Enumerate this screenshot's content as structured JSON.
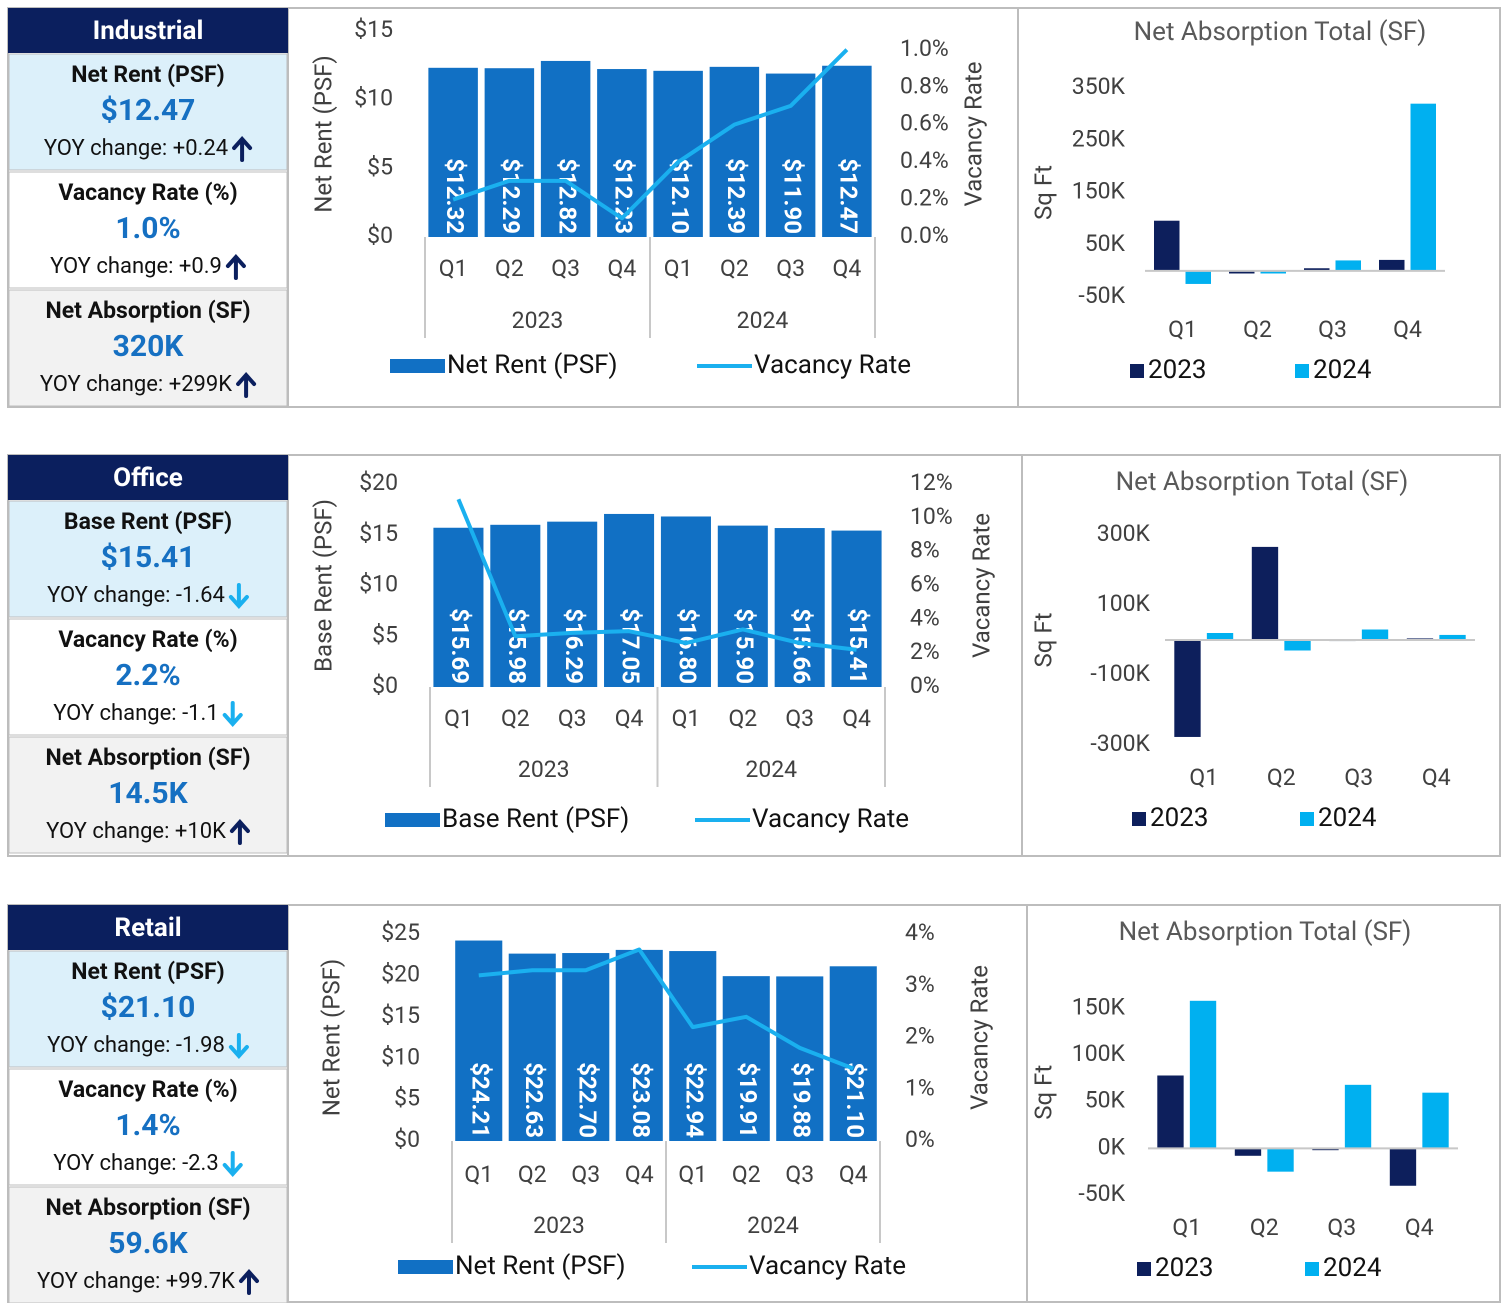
{
  "panels": [
    {
      "title": "Industrial",
      "stats": [
        {
          "label": "Net Rent (PSF)",
          "value": "$12.47",
          "change": "YOY change: +0.24",
          "direction": "up"
        },
        {
          "label": "Vacancy Rate (%)",
          "value": "1.0%",
          "change": "YOY change: +0.9",
          "direction": "up"
        },
        {
          "label": "Net Absorption (SF)",
          "value": "320K",
          "change": "YOY change: +299K",
          "direction": "up"
        }
      ]
    },
    {
      "title": "Office",
      "stats": [
        {
          "label": "Base Rent (PSF)",
          "value": "$15.41",
          "change": "YOY change: -1.64",
          "direction": "down"
        },
        {
          "label": "Vacancy Rate (%)",
          "value": "2.2%",
          "change": "YOY change: -1.1",
          "direction": "down"
        },
        {
          "label": "Net Absorption (SF)",
          "value": "14.5K",
          "change": "YOY change: +10K",
          "direction": "up"
        }
      ]
    },
    {
      "title": "Retail",
      "stats": [
        {
          "label": "Net Rent (PSF)",
          "value": "$21.10",
          "change": "YOY change: -1.98",
          "direction": "down"
        },
        {
          "label": "Vacancy Rate (%)",
          "value": "1.4%",
          "change": "YOY change: -2.3",
          "direction": "down"
        },
        {
          "label": "Net Absorption (SF)",
          "value": "59.6K",
          "change": "YOY change: +99.7K",
          "direction": "up"
        }
      ]
    }
  ],
  "chart_data": [
    {
      "type": "combo",
      "categories": [
        "Q1",
        "Q2",
        "Q3",
        "Q4",
        "Q1",
        "Q2",
        "Q3",
        "Q4"
      ],
      "category_groups": [
        "2023",
        "2024"
      ],
      "y_label": "Net Rent (PSF)",
      "y2_label": "Vacancy Rate",
      "ylim": [
        0,
        15
      ],
      "yticks": [
        {
          "value": 0,
          "label": "$0"
        },
        {
          "value": 5,
          "label": "$5"
        },
        {
          "value": 10,
          "label": "$10"
        },
        {
          "value": 15,
          "label": "$15"
        }
      ],
      "y2lim": [
        0,
        1.1
      ],
      "y2ticks": [
        {
          "value": 0,
          "label": "0.0%"
        },
        {
          "value": 0.2,
          "label": "0.2%"
        },
        {
          "value": 0.4,
          "label": "0.4%"
        },
        {
          "value": 0.6,
          "label": "0.6%"
        },
        {
          "value": 0.8,
          "label": "0.8%"
        },
        {
          "value": 1.0,
          "label": "1.0%"
        }
      ],
      "series": [
        {
          "name": "Net Rent (PSF)",
          "type": "bar",
          "color": "#1170c4",
          "values": [
            12.32,
            12.29,
            12.82,
            12.23,
            12.1,
            12.39,
            11.9,
            12.47
          ],
          "value_labels": [
            "$12.32",
            "$12.29",
            "$12.82",
            "$12.23",
            "$12.10",
            "$12.39",
            "$11.90",
            "$12.47"
          ]
        },
        {
          "name": "Vacancy Rate",
          "type": "line",
          "axis": "y2",
          "color": "#1ab0ef",
          "values": [
            0.2,
            0.3,
            0.3,
            0.1,
            0.4,
            0.6,
            0.7,
            1.0
          ]
        }
      ]
    },
    {
      "type": "bar",
      "title": "Net Absorption Total (SF)",
      "y_label": "Sq Ft",
      "categories": [
        "Q1",
        "Q2",
        "Q3",
        "Q4"
      ],
      "ylim": [
        -50000,
        350000
      ],
      "yticks": [
        {
          "value": -50000,
          "label": "-50K"
        },
        {
          "value": 50000,
          "label": "50K"
        },
        {
          "value": 150000,
          "label": "150K"
        },
        {
          "value": 250000,
          "label": "250K"
        },
        {
          "value": 350000,
          "label": "350K"
        }
      ],
      "series": [
        {
          "name": "2023",
          "color": "#0d1f5c",
          "values": [
            96000,
            -5000,
            5000,
            21000
          ]
        },
        {
          "name": "2024",
          "color": "#00b0f0",
          "values": [
            -25000,
            -5000,
            20000,
            320000
          ]
        }
      ]
    },
    {
      "type": "combo",
      "categories": [
        "Q1",
        "Q2",
        "Q3",
        "Q4",
        "Q1",
        "Q2",
        "Q3",
        "Q4"
      ],
      "category_groups": [
        "2023",
        "2024"
      ],
      "y_label": "Base Rent (PSF)",
      "y2_label": "Vacancy Rate",
      "ylim": [
        0,
        20
      ],
      "yticks": [
        {
          "value": 0,
          "label": "$0"
        },
        {
          "value": 5,
          "label": "$5"
        },
        {
          "value": 10,
          "label": "$10"
        },
        {
          "value": 15,
          "label": "$15"
        },
        {
          "value": 20,
          "label": "$20"
        }
      ],
      "y2lim": [
        0,
        12
      ],
      "y2ticks": [
        {
          "value": 0,
          "label": "0%"
        },
        {
          "value": 2,
          "label": "2%"
        },
        {
          "value": 4,
          "label": "4%"
        },
        {
          "value": 6,
          "label": "6%"
        },
        {
          "value": 8,
          "label": "8%"
        },
        {
          "value": 10,
          "label": "10%"
        },
        {
          "value": 12,
          "label": "12%"
        }
      ],
      "series": [
        {
          "name": "Base Rent (PSF)",
          "type": "bar",
          "color": "#1170c4",
          "values": [
            15.69,
            15.98,
            16.29,
            17.05,
            16.8,
            15.9,
            15.66,
            15.41
          ],
          "value_labels": [
            "$15.69",
            "$15.98",
            "$16.29",
            "$17.05",
            "$16.80",
            "$15.90",
            "$15.66",
            "$15.41"
          ]
        },
        {
          "name": "Vacancy Rate",
          "type": "line",
          "axis": "y2",
          "color": "#1ab0ef",
          "values": [
            11.1,
            3.0,
            3.2,
            3.3,
            2.6,
            3.4,
            2.6,
            2.2
          ]
        }
      ]
    },
    {
      "type": "bar",
      "title": "Net Absorption Total (SF)",
      "y_label": "Sq Ft",
      "categories": [
        "Q1",
        "Q2",
        "Q3",
        "Q4"
      ],
      "ylim": [
        -300000,
        300000
      ],
      "yticks": [
        {
          "value": -300000,
          "label": "-300K"
        },
        {
          "value": -100000,
          "label": "-100K"
        },
        {
          "value": 100000,
          "label": "100K"
        },
        {
          "value": 300000,
          "label": "300K"
        }
      ],
      "series": [
        {
          "name": "2023",
          "color": "#0d1f5c",
          "values": [
            -277000,
            266000,
            -3000,
            4500
          ]
        },
        {
          "name": "2024",
          "color": "#00b0f0",
          "values": [
            20000,
            -30000,
            30000,
            14500
          ]
        }
      ]
    },
    {
      "type": "combo",
      "categories": [
        "Q1",
        "Q2",
        "Q3",
        "Q4",
        "Q1",
        "Q2",
        "Q3",
        "Q4"
      ],
      "category_groups": [
        "2023",
        "2024"
      ],
      "y_label": "Net Rent (PSF)",
      "y2_label": "Vacancy Rate",
      "ylim": [
        0,
        25
      ],
      "yticks": [
        {
          "value": 0,
          "label": "$0"
        },
        {
          "value": 5,
          "label": "$5"
        },
        {
          "value": 10,
          "label": "$10"
        },
        {
          "value": 15,
          "label": "$15"
        },
        {
          "value": 20,
          "label": "$20"
        },
        {
          "value": 25,
          "label": "$25"
        }
      ],
      "y2lim": [
        0,
        4
      ],
      "y2ticks": [
        {
          "value": 0,
          "label": "0%"
        },
        {
          "value": 1,
          "label": "1%"
        },
        {
          "value": 2,
          "label": "2%"
        },
        {
          "value": 3,
          "label": "3%"
        },
        {
          "value": 4,
          "label": "4%"
        }
      ],
      "series": [
        {
          "name": "Net Rent (PSF)",
          "type": "bar",
          "color": "#1170c4",
          "values": [
            24.21,
            22.63,
            22.7,
            23.08,
            22.94,
            19.91,
            19.88,
            21.1
          ],
          "value_labels": [
            "$24.21",
            "$22.63",
            "$22.70",
            "$23.08",
            "$22.94",
            "$19.91",
            "$19.88",
            "$21.10"
          ]
        },
        {
          "name": "Vacancy Rate",
          "type": "line",
          "axis": "y2",
          "color": "#1ab0ef",
          "values": [
            3.2,
            3.3,
            3.3,
            3.7,
            2.2,
            2.4,
            1.8,
            1.4
          ]
        }
      ]
    },
    {
      "type": "bar",
      "title": "Net Absorption Total (SF)",
      "y_label": "Sq Ft",
      "categories": [
        "Q1",
        "Q2",
        "Q3",
        "Q4"
      ],
      "ylim": [
        -50000,
        170000
      ],
      "yticks": [
        {
          "value": -50000,
          "label": "-50K"
        },
        {
          "value": 0,
          "label": "0K"
        },
        {
          "value": 50000,
          "label": "50K"
        },
        {
          "value": 100000,
          "label": "100K"
        },
        {
          "value": 150000,
          "label": "150K"
        }
      ],
      "series": [
        {
          "name": "2023",
          "color": "#0d1f5c",
          "values": [
            78000,
            -8000,
            -2000,
            -40100
          ]
        },
        {
          "name": "2024",
          "color": "#00b0f0",
          "values": [
            158000,
            -25000,
            68000,
            59600
          ]
        }
      ]
    }
  ]
}
